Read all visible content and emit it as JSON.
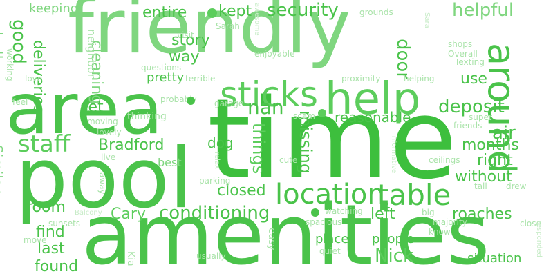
{
  "palette": [
    "#3dbf3d",
    "#4ac34a",
    "#5ccd5c",
    "#7fd67f",
    "#a9e3a9",
    "#c8ecc8"
  ],
  "words": [
    {
      "text": "friendly"
    },
    {
      "text": "area"
    },
    {
      "text": "time"
    },
    {
      "text": "pool"
    },
    {
      "text": "amenities"
    },
    {
      "text": "around"
    },
    {
      "text": "help"
    },
    {
      "text": "sticks"
    },
    {
      "text": "location"
    },
    {
      "text": "table"
    },
    {
      "text": "security"
    },
    {
      "text": "helpful"
    },
    {
      "text": "entire"
    },
    {
      "text": "kept"
    },
    {
      "text": "keeping"
    },
    {
      "text": "good"
    },
    {
      "text": "cleaning"
    },
    {
      "text": "hallways"
    },
    {
      "text": "deliveries"
    },
    {
      "text": "neighbor"
    },
    {
      "text": "story"
    },
    {
      "text": "way"
    },
    {
      "text": "door"
    },
    {
      "text": "staff"
    },
    {
      "text": "Bradford"
    },
    {
      "text": "deposit"
    },
    {
      "text": "nan"
    },
    {
      "text": "reasonable"
    },
    {
      "text": "use"
    },
    {
      "text": "set"
    },
    {
      "text": "missing"
    },
    {
      "text": "things"
    },
    {
      "text": "dog"
    },
    {
      "text": "air"
    },
    {
      "text": "months"
    },
    {
      "text": "right"
    },
    {
      "text": "without"
    },
    {
      "text": "conditioning"
    },
    {
      "text": "closed"
    },
    {
      "text": "room"
    },
    {
      "text": "Cary"
    },
    {
      "text": "left"
    },
    {
      "text": "roaches"
    },
    {
      "text": "find"
    },
    {
      "text": "last"
    },
    {
      "text": "found"
    },
    {
      "text": "Nick"
    },
    {
      "text": "people"
    },
    {
      "text": "places"
    },
    {
      "text": "situation"
    },
    {
      "text": "Similar"
    },
    {
      "text": "pretty"
    },
    {
      "text": "probably"
    },
    {
      "text": "thinking"
    },
    {
      "text": "lovely"
    },
    {
      "text": "moving"
    },
    {
      "text": "best"
    },
    {
      "text": "parking"
    },
    {
      "text": "relax"
    },
    {
      "text": "garage"
    },
    {
      "text": "terrible"
    },
    {
      "text": "questions"
    },
    {
      "text": "enjoyable"
    },
    {
      "text": "awesome"
    },
    {
      "text": "Sarah"
    },
    {
      "text": "visit"
    },
    {
      "text": "grounds"
    },
    {
      "text": "Sara"
    },
    {
      "text": "shops"
    },
    {
      "text": "Overall"
    },
    {
      "text": "Texting"
    },
    {
      "text": "proximity"
    },
    {
      "text": "helping"
    },
    {
      "text": "scam"
    },
    {
      "text": "super"
    },
    {
      "text": "friends"
    },
    {
      "text": "informative"
    },
    {
      "text": "cute"
    },
    {
      "text": "ceilings"
    },
    {
      "text": "tall"
    },
    {
      "text": "drew"
    },
    {
      "text": "watching"
    },
    {
      "text": "spacious"
    },
    {
      "text": "big"
    },
    {
      "text": "majority"
    },
    {
      "text": "close"
    },
    {
      "text": "know"
    },
    {
      "text": "responded"
    },
    {
      "text": "easy"
    },
    {
      "text": "quiet"
    },
    {
      "text": "usually"
    },
    {
      "text": "Kia"
    },
    {
      "text": "sunsets"
    },
    {
      "text": "Balcony"
    },
    {
      "text": "move"
    },
    {
      "text": "away"
    },
    {
      "text": "live"
    },
    {
      "text": "feel"
    },
    {
      "text": "love"
    },
    {
      "text": "working"
    }
  ]
}
